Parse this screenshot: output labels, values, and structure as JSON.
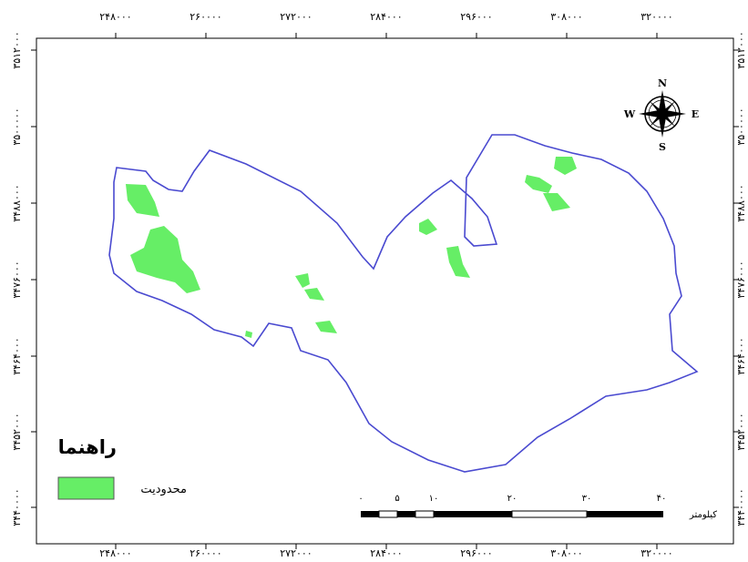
{
  "map": {
    "boundary_color": "#4a4ad0",
    "restriction_color": "#66ee66",
    "x_ticks": [
      "۲۴۸۰۰۰",
      "۲۶۰۰۰۰",
      "۲۷۲۰۰۰",
      "۲۸۴۰۰۰",
      "۲۹۶۰۰۰",
      "۳۰۸۰۰۰",
      "۳۲۰۰۰۰"
    ],
    "y_ticks": [
      "۳۵۱۲۰۰۰",
      "۳۵۰۰۰۰۰",
      "۳۴۸۸۰۰۰",
      "۳۴۷۶۰۰۰",
      "۳۴۶۴۰۰۰",
      "۳۴۵۲۰۰۰",
      "۳۴۴۰۰۰۰"
    ]
  },
  "legend": {
    "title": "راهنما",
    "items": [
      {
        "label": "محدودیت",
        "color": "#66ee66"
      }
    ]
  },
  "scale_bar": {
    "labels": [
      "۰",
      "۵",
      "۱۰",
      "۲۰",
      "۳۰",
      "۴۰"
    ],
    "unit": "کیلومتر"
  },
  "north_arrow": {
    "n": "N",
    "s": "S",
    "e": "E",
    "w": "W"
  }
}
